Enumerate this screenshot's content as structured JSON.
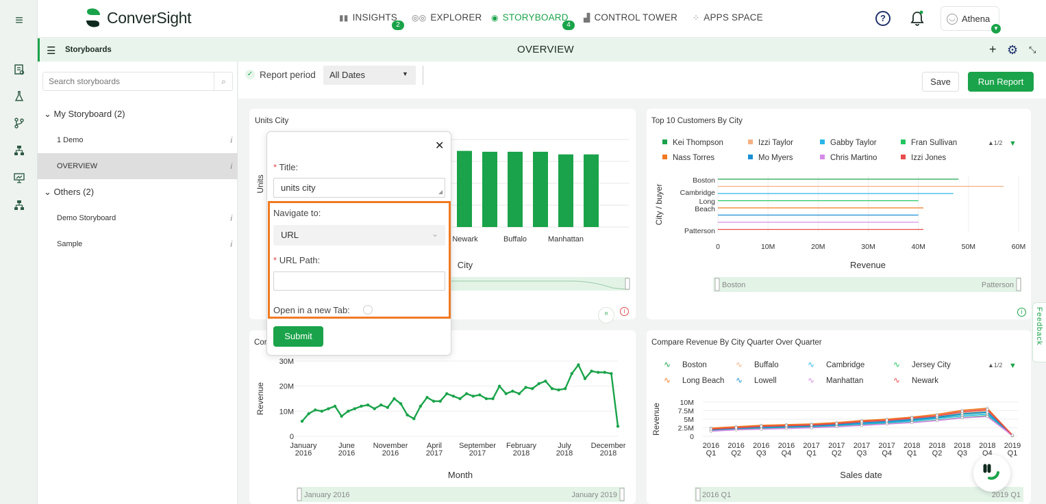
{
  "brand": {
    "name": "ConverSight",
    "green": "#1aa34a",
    "accent": "#f07a22"
  },
  "topnav": {
    "items": [
      {
        "label": "INSIGHTS",
        "badge": "2"
      },
      {
        "label": "EXPLORER"
      },
      {
        "label": "STORYBOARD",
        "badge": "4"
      },
      {
        "label": "CONTROL TOWER"
      },
      {
        "label": "APPS SPACE"
      }
    ],
    "user": "Athena"
  },
  "subbar": {
    "section": "Storyboards",
    "title": "OVERVIEW"
  },
  "sidebar": {
    "search_placeholder": "Search storyboards",
    "groups": [
      {
        "label": "My Storyboard (2)",
        "items": [
          "1 Demo",
          "OVERVIEW"
        ]
      },
      {
        "label": "Others (2)",
        "items": [
          "Demo Storyboard",
          "Sample"
        ]
      }
    ],
    "info_glyph": "i"
  },
  "toolbar": {
    "report_period_label": "Report period",
    "report_period_value": "All Dates",
    "save": "Save",
    "run": "Run Report"
  },
  "dialog": {
    "title_label": "Title:",
    "title_value": "units city",
    "navigate_label": "Navigate to:",
    "navigate_value": "URL",
    "url_label": "URL Path:",
    "url_value": "",
    "newtab_label": "Open in a new Tab:",
    "submit": "Submit",
    "required_mark": "*"
  },
  "feedback": "Feedback",
  "panels": {
    "units_city": {
      "title": "Units City",
      "visible_title_fragment": "Cor"
    },
    "top10": {
      "title": "Top 10 Customers By City"
    },
    "compare_rev": {
      "title": "Compare Revenue By City Quarter Over Quarter"
    }
  },
  "chart_data": [
    {
      "type": "bar",
      "title": "Units City",
      "xlabel": "City",
      "ylabel": "Units",
      "categories": [
        "Newark",
        "",
        "Buffalo",
        "",
        "Manhattan",
        ""
      ],
      "values": [
        87,
        86,
        86,
        86,
        83,
        83
      ],
      "ylim": [
        0,
        100
      ],
      "visible_tick_labels": [
        "Newark",
        "Buffalo",
        "Manhattan"
      ],
      "zoom": {
        "start": "",
        "end": ""
      }
    },
    {
      "type": "bar",
      "orientation": "horizontal",
      "title": "Top 10 Customers By City",
      "xlabel": "Revenue",
      "ylabel": "City / buyer",
      "categories": [
        "Boston",
        "Cambridge",
        "Long Beach",
        "Patterson"
      ],
      "xticks": [
        "0",
        "10M",
        "20M",
        "30M",
        "40M",
        "50M",
        "60M"
      ],
      "xlim": [
        0,
        60
      ],
      "series": [
        {
          "name": "Kei Thompson",
          "color": "#1aa34a",
          "value": 48
        },
        {
          "name": "Izzi Taylor",
          "color": "#f4b183",
          "value": 57
        },
        {
          "name": "Gabby Taylor",
          "color": "#29b6e8",
          "value": 47
        },
        {
          "name": "Fran Sullivan",
          "color": "#22c55e",
          "value": 40
        },
        {
          "name": "Nass Torres",
          "color": "#f07a22",
          "value": 41
        },
        {
          "name": "Mo Myers",
          "color": "#1a8fd1",
          "value": 40
        },
        {
          "name": "Chris Martino",
          "color": "#d58ae8",
          "value": 40
        },
        {
          "name": "Izzi Jones",
          "color": "#e84b4b",
          "value": 41
        }
      ],
      "legend_page": "1/2",
      "zoom": {
        "start": "Boston",
        "end": "Patterson"
      }
    },
    {
      "type": "line",
      "title": "Company Revenue",
      "xlabel": "Month",
      "ylabel": "Revenue",
      "yticks": [
        "0",
        "10M",
        "20M",
        "30M"
      ],
      "ylim": [
        0,
        30
      ],
      "xticks": [
        [
          "January",
          "2016"
        ],
        [
          "June",
          "2016"
        ],
        [
          "November",
          "2016"
        ],
        [
          "April",
          "2017"
        ],
        [
          "September",
          "2017"
        ],
        [
          "February",
          "2018"
        ],
        [
          "July",
          "2018"
        ],
        [
          "December",
          "2018"
        ]
      ],
      "values": [
        6,
        9,
        10.5,
        10,
        11,
        12,
        8,
        10,
        11,
        12,
        12.5,
        11,
        12.5,
        11.5,
        15,
        13,
        8.5,
        7,
        12,
        15.5,
        14,
        14,
        17,
        16,
        15,
        17,
        16,
        16.5,
        15,
        15,
        20,
        17,
        18,
        17,
        19.5,
        19,
        21,
        22,
        19,
        18.5,
        19,
        25,
        28.5,
        23,
        26,
        25.5,
        25.5,
        25,
        4
      ],
      "zoom": {
        "start": "January 2016",
        "end": "January 2019"
      }
    },
    {
      "type": "line",
      "title": "Compare Revenue By City Quarter Over Quarter",
      "xlabel": "Sales date",
      "ylabel": "Revenue",
      "yticks": [
        "0",
        "2.5M",
        "5M",
        "7.5M",
        "10M"
      ],
      "ylim": [
        0,
        10
      ],
      "x": [
        [
          "2016",
          "Q1"
        ],
        [
          "2016",
          "Q2"
        ],
        [
          "2016",
          "Q3"
        ],
        [
          "2016",
          "Q4"
        ],
        [
          "2017",
          "Q1"
        ],
        [
          "2017",
          "Q2"
        ],
        [
          "2017",
          "Q3"
        ],
        [
          "2017",
          "Q4"
        ],
        [
          "2018",
          "Q1"
        ],
        [
          "2018",
          "Q2"
        ],
        [
          "2018",
          "Q3"
        ],
        [
          "2018",
          "Q4"
        ],
        [
          "2019",
          "Q1"
        ]
      ],
      "series": [
        {
          "name": "Boston",
          "color": "#1aa34a",
          "values": [
            2,
            2.4,
            2.5,
            2.8,
            3,
            3.3,
            3.8,
            4.2,
            4.8,
            5.5,
            6.5,
            7,
            0.2
          ]
        },
        {
          "name": "Buffalo",
          "color": "#f4b183",
          "values": [
            2.2,
            2.6,
            2.8,
            3,
            3.2,
            3.6,
            4,
            4.4,
            5,
            5.8,
            6.8,
            7.5,
            0.3
          ]
        },
        {
          "name": "Cambridge",
          "color": "#29b6e8",
          "values": [
            1.8,
            2.2,
            2.5,
            2.7,
            2.9,
            3.2,
            3.6,
            4,
            4.5,
            5.2,
            6,
            6.5,
            0.2
          ]
        },
        {
          "name": "Jersey City",
          "color": "#22c55e",
          "values": [
            1.6,
            2,
            2.2,
            2.4,
            2.6,
            2.9,
            3.3,
            3.7,
            4.1,
            4.7,
            5.5,
            6,
            0.2
          ]
        },
        {
          "name": "Long Beach",
          "color": "#f07a22",
          "values": [
            2.4,
            2.8,
            3.2,
            3.4,
            3.6,
            4,
            4.6,
            5,
            5.6,
            6.4,
            7.6,
            8.2,
            0.3
          ]
        },
        {
          "name": "Lowell",
          "color": "#1a8fd1",
          "values": [
            1.9,
            2.3,
            2.6,
            2.8,
            3,
            3.4,
            3.9,
            4.3,
            4.9,
            5.6,
            6.6,
            7.1,
            0.2
          ]
        },
        {
          "name": "Manhattan",
          "color": "#d58ae8",
          "values": [
            1.5,
            1.9,
            2.1,
            2.3,
            2.5,
            2.8,
            3.2,
            3.6,
            4,
            4.6,
            5.4,
            5.8,
            0.2
          ]
        },
        {
          "name": "Newark",
          "color": "#e84b4b",
          "values": [
            2.1,
            2.5,
            2.9,
            3.1,
            3.3,
            3.7,
            4.3,
            4.7,
            5.3,
            6,
            7.2,
            7.8,
            0.3
          ]
        }
      ],
      "legend_page": "1/2",
      "zoom": {
        "start": "2016 Q1",
        "end": "2019 Q1"
      }
    }
  ]
}
